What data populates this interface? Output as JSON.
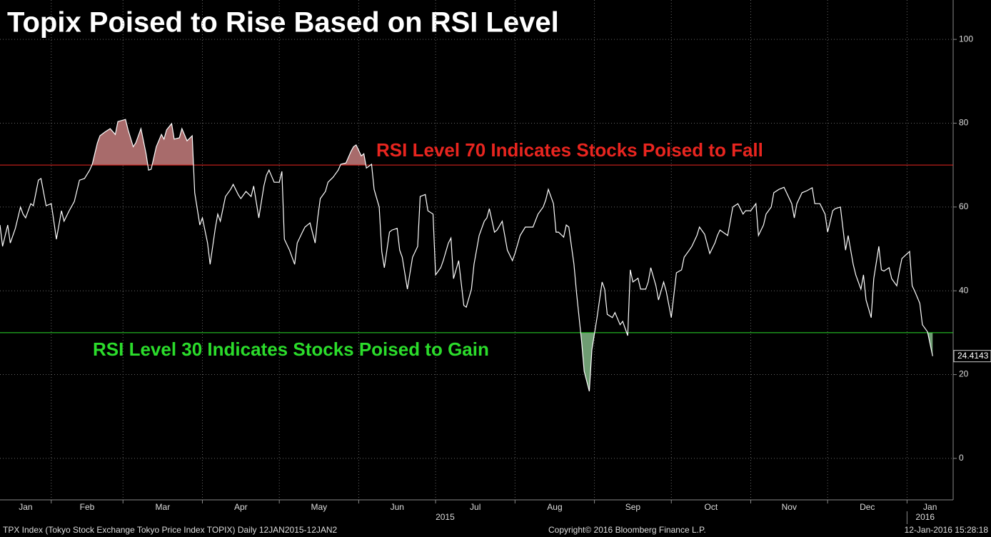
{
  "chart_data": {
    "type": "line",
    "title": "Topix Poised to Rise Based on RSI Level",
    "color": "#ffffff",
    "x": [
      11,
      12,
      14,
      15,
      17,
      19,
      20,
      21,
      23,
      24,
      26,
      27,
      29,
      31,
      32,
      33,
      35,
      36,
      38,
      40,
      42,
      44,
      46,
      47,
      49,
      50,
      52,
      54,
      56,
      57,
      60,
      61,
      63,
      64,
      66,
      68,
      69,
      70,
      72,
      74,
      75,
      76,
      78,
      79,
      81,
      82,
      84,
      86,
      87,
      89,
      90,
      92,
      93,
      95,
      96,
      97,
      99,
      101,
      102,
      104,
      105,
      107,
      109,
      110,
      112,
      114,
      115,
      116,
      118,
      120,
      121,
      122,
      124,
      126,
      127,
      129,
      130,
      132,
      134,
      135,
      136,
      138,
      139,
      141,
      143,
      144,
      146,
      148,
      149,
      150,
      152,
      153,
      154,
      156,
      157,
      159,
      160,
      161,
      163,
      164,
      166,
      167,
      168,
      170,
      172,
      174,
      175,
      177,
      178,
      180,
      181,
      183,
      184,
      186,
      187,
      188,
      190,
      192,
      193,
      195,
      196,
      198,
      200,
      201,
      202,
      204,
      205,
      207,
      209,
      211,
      212,
      214,
      216,
      218,
      219,
      221,
      223,
      224,
      225,
      227,
      228,
      229,
      231,
      232,
      233,
      235,
      236,
      238,
      239,
      241,
      242,
      244,
      246,
      247,
      248,
      250,
      251,
      253,
      254,
      256,
      257,
      258,
      260,
      261,
      263,
      264,
      265,
      267,
      268,
      270,
      271,
      273,
      275,
      277,
      278,
      280,
      281,
      283,
      284,
      286,
      288,
      290,
      291,
      292,
      295,
      296,
      297,
      299,
      301,
      302,
      304,
      306,
      307,
      309,
      310,
      312,
      313,
      315,
      317,
      318,
      320,
      321,
      322,
      324,
      326,
      328,
      329,
      331,
      333,
      334,
      336,
      337,
      339,
      341,
      342,
      344,
      345,
      347,
      348,
      349,
      351,
      352,
      354,
      355,
      356,
      358,
      359,
      361,
      362,
      363,
      366,
      367,
      368,
      370,
      371,
      373,
      375
    ],
    "values": [
      55.7,
      50.6,
      55.7,
      51.4,
      54.9,
      60,
      58.3,
      57.4,
      60.8,
      60.3,
      66.4,
      66.8,
      60.3,
      60.8,
      56.6,
      52.3,
      59.1,
      56.6,
      59.1,
      61.3,
      66.4,
      66.8,
      68.8,
      70.2,
      75.3,
      77,
      77.9,
      78.7,
      77.3,
      80.4,
      80.9,
      78.4,
      74.4,
      75.3,
      78.7,
      72.7,
      68.8,
      69,
      74.4,
      77.3,
      76.2,
      78.4,
      79.9,
      76.2,
      76.5,
      78.7,
      75.8,
      77,
      63.4,
      55.7,
      57.4,
      51.4,
      46.3,
      54.9,
      58.3,
      56.6,
      62.5,
      64.2,
      65.4,
      62.9,
      62,
      63.7,
      62.5,
      65,
      57.4,
      65,
      67.6,
      68.8,
      65.9,
      65.9,
      68.5,
      52.3,
      49.7,
      46.3,
      51.4,
      54,
      55.2,
      56.2,
      51.4,
      57.4,
      62,
      63.7,
      65.9,
      67.1,
      68.8,
      70.2,
      70.5,
      73.3,
      74.4,
      74.8,
      72.2,
      72.7,
      69.3,
      70.2,
      64.2,
      60,
      49.4,
      45.5,
      54,
      54.5,
      54.9,
      49.7,
      48,
      40.4,
      48,
      50.6,
      62.5,
      63,
      59.1,
      58.3,
      43.8,
      45.5,
      47.2,
      51.4,
      52.6,
      42.9,
      47.2,
      36.5,
      36.1,
      40.4,
      46.3,
      53.2,
      56.6,
      57.4,
      59.6,
      54,
      54.5,
      56.6,
      49.7,
      47.2,
      48.9,
      53.2,
      55.2,
      55.2,
      55.2,
      58.3,
      60,
      61.7,
      64.2,
      60.8,
      54,
      54,
      52.8,
      55.7,
      55.2,
      46.3,
      39.5,
      27.9,
      20.8,
      16,
      25.9,
      33.6,
      42.1,
      40.4,
      34.4,
      33.6,
      34.8,
      31.9,
      32.7,
      29.3,
      45,
      42.1,
      43,
      40.4,
      40.4,
      42.1,
      45.5,
      41.2,
      37.8,
      42.1,
      39.9,
      33.6,
      44.3,
      45,
      48,
      49.7,
      50.6,
      53.2,
      55.2,
      53.5,
      48.9,
      51.4,
      53.2,
      54.5,
      53.2,
      56.6,
      60,
      60.8,
      58.3,
      59.1,
      59.1,
      60.8,
      53.2,
      55.7,
      58.3,
      60,
      63.4,
      64.2,
      64.7,
      63.4,
      60.8,
      57.4,
      60.8,
      63.4,
      63.9,
      64.6,
      60.8,
      60.8,
      58.3,
      54,
      59.1,
      59.6,
      60,
      49.7,
      53.2,
      46.3,
      43.8,
      40.4,
      43.8,
      37.8,
      33.6,
      42.9,
      50.6,
      45,
      44.7,
      45.5,
      42.9,
      41.2,
      44.7,
      47.7,
      49.4,
      41.2,
      39.9,
      37,
      31.9,
      30.2,
      24.4143
    ],
    "xlim": [
      11,
      383
    ],
    "xticks": [
      {
        "value": 0,
        "label": "Jan"
      },
      {
        "value": 31,
        "label": "Feb"
      },
      {
        "value": 59,
        "label": "Mar"
      },
      {
        "value": 90,
        "label": "Apr"
      },
      {
        "value": 120,
        "label": "May"
      },
      {
        "value": 151,
        "label": "Jun"
      },
      {
        "value": 181,
        "label": "Jul"
      },
      {
        "value": 212,
        "label": "Aug"
      },
      {
        "value": 243,
        "label": "Sep"
      },
      {
        "value": 273,
        "label": "Oct"
      },
      {
        "value": 304,
        "label": "Nov"
      },
      {
        "value": 334,
        "label": "Dec"
      },
      {
        "value": 365,
        "label": "Jan"
      }
    ],
    "year_labels": [
      {
        "value": 181,
        "label": "2015"
      },
      {
        "value": 365,
        "label": "2016"
      }
    ],
    "ylim": [
      -9.9,
      109.4
    ],
    "yticks": [
      0,
      20,
      40,
      60,
      80,
      100
    ],
    "grid": true,
    "reference_lines": [
      {
        "value": 70,
        "color": "#e8251f",
        "fill": "#a86b6b",
        "side": "above",
        "label": "RSI Level 70 Indicates Stocks Poised to Fall"
      },
      {
        "value": 30,
        "color": "#2bdc2b",
        "fill": "#6f9d73",
        "side": "below",
        "label": "RSI Level 30 Indicates Stocks Poised to Gain"
      }
    ],
    "footer": {
      "source": "TPX Index (Tokyo Stock Exchange Tokyo Price Index TOPIX)  Daily 12JAN2015-12JAN2",
      "copyright": "Copyright© 2016 Bloomberg Finance L.P.",
      "timestamp": "12-Jan-2016 15:28:18"
    }
  }
}
